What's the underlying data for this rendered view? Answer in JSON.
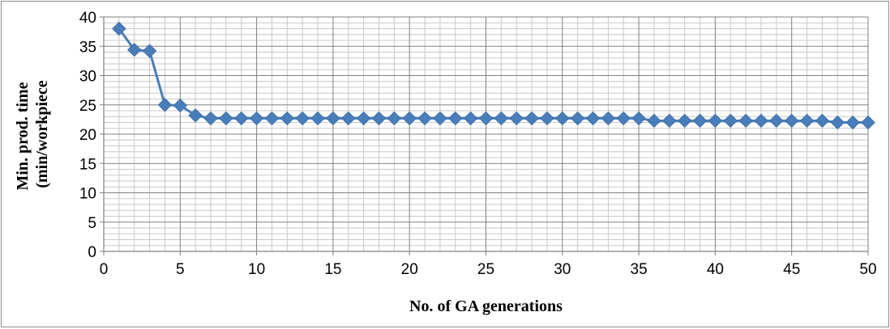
{
  "chart_data": {
    "type": "line",
    "title": "",
    "xlabel": "No. of GA generations",
    "ylabel": "Min. prod. time (min/workpiece",
    "ylabel_lines": [
      "Min. prod. time",
      "(min/workpiece"
    ],
    "xlim": [
      0,
      50
    ],
    "ylim": [
      0,
      40
    ],
    "x_ticks": [
      0,
      5,
      10,
      15,
      20,
      25,
      30,
      35,
      40,
      45,
      50
    ],
    "y_ticks": [
      0,
      5,
      10,
      15,
      20,
      25,
      30,
      35,
      40
    ],
    "grid": true,
    "legend": "none",
    "colors": {
      "series": "#4A7EBB",
      "major_grid": "#808080",
      "minor_grid": "#c8c8c8"
    },
    "series": [
      {
        "marker": "diamond",
        "x": [
          1,
          2,
          3,
          4,
          5,
          6,
          7,
          8,
          9,
          10,
          11,
          12,
          13,
          14,
          15,
          16,
          17,
          18,
          19,
          20,
          21,
          22,
          23,
          24,
          25,
          26,
          27,
          28,
          29,
          30,
          31,
          32,
          33,
          34,
          35,
          36,
          37,
          38,
          39,
          40,
          41,
          42,
          43,
          44,
          45,
          46,
          47,
          48,
          49,
          50
        ],
        "values": [
          38.0,
          34.4,
          34.2,
          25.0,
          24.9,
          23.2,
          22.7,
          22.7,
          22.7,
          22.7,
          22.7,
          22.7,
          22.7,
          22.7,
          22.7,
          22.7,
          22.7,
          22.7,
          22.7,
          22.7,
          22.7,
          22.7,
          22.7,
          22.7,
          22.7,
          22.7,
          22.7,
          22.7,
          22.7,
          22.7,
          22.7,
          22.7,
          22.7,
          22.7,
          22.7,
          22.3,
          22.3,
          22.3,
          22.3,
          22.3,
          22.3,
          22.3,
          22.3,
          22.3,
          22.3,
          22.3,
          22.3,
          22.0,
          22.0,
          22.0
        ]
      }
    ]
  }
}
